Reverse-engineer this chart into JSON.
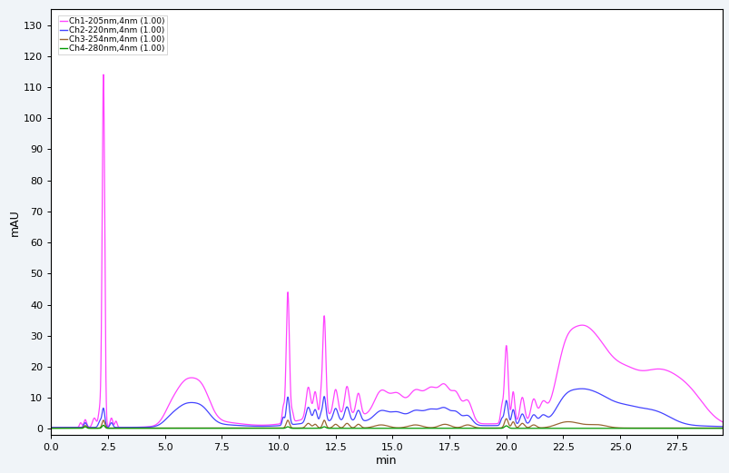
{
  "title": "",
  "ylabel": "mAU",
  "xlabel": "min",
  "xlim": [
    0.0,
    29.5
  ],
  "ylim": [
    -2,
    135
  ],
  "yticks": [
    0,
    10,
    20,
    30,
    40,
    50,
    60,
    70,
    80,
    90,
    100,
    110,
    120,
    130
  ],
  "xticks": [
    0.0,
    2.5,
    5.0,
    7.5,
    10.0,
    12.5,
    15.0,
    17.5,
    20.0,
    22.5,
    25.0,
    27.5
  ],
  "xtick_labels": [
    "0.0",
    "2.5",
    "5.0",
    "7.5",
    "10.0",
    "12.5",
    "15.0",
    "17.5",
    "20.0",
    "22.5",
    "25.0",
    "27.5"
  ],
  "background_color": "#f0f4f8",
  "plot_bg_color": "#ffffff",
  "channels": [
    {
      "name": "Ch1-205nm,4nm (1.00)",
      "color": "#ff44ff",
      "linewidth": 0.9
    },
    {
      "name": "Ch2-220nm,4nm (1.00)",
      "color": "#4444ff",
      "linewidth": 0.9
    },
    {
      "name": "Ch3-254nm,4nm (1.00)",
      "color": "#996633",
      "linewidth": 0.9
    },
    {
      "name": "Ch4-280nm,4nm (1.00)",
      "color": "#009900",
      "linewidth": 0.9
    }
  ]
}
